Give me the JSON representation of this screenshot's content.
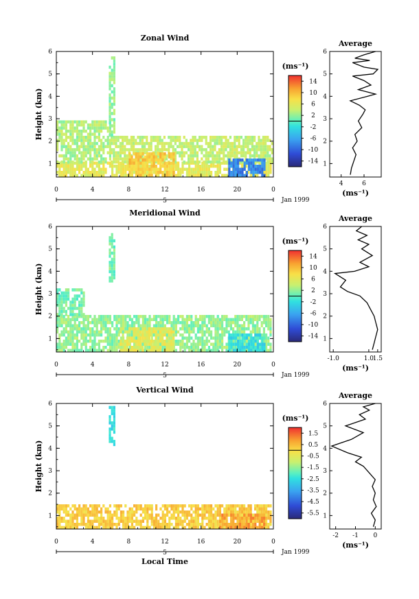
{
  "panels": [
    {
      "title": "Zonal Wind",
      "ylabel": "Height (km)",
      "yticks": [
        "1",
        "2",
        "3",
        "4",
        "5",
        "6"
      ],
      "xticks": [
        "0",
        "4",
        "8",
        "12",
        "16",
        "20",
        "0"
      ],
      "day_label": "5",
      "date_label": "Jan 1999",
      "unit_label": "(ms⁻¹)",
      "colorbar_ticks": [
        "14",
        "10",
        "6",
        "2",
        "-2",
        "-6",
        "-10",
        "-14"
      ],
      "avg_title": "Average",
      "avg_xticks": [
        "4",
        "6"
      ],
      "avg_unit": "(ms⁻¹)"
    },
    {
      "title": "Meridional Wind",
      "ylabel": "Height (km)",
      "yticks": [
        "1",
        "2",
        "3",
        "4",
        "5",
        "6"
      ],
      "xticks": [
        "0",
        "4",
        "8",
        "12",
        "16",
        "20",
        "0"
      ],
      "day_label": "5",
      "date_label": "Jan 1999",
      "unit_label": "(ms⁻¹)",
      "colorbar_ticks": [
        "14",
        "10",
        "6",
        "2",
        "-2",
        "-6",
        "-10",
        "-14"
      ],
      "avg_title": "Average",
      "avg_xticks": [
        "-1.0",
        "1.0",
        "1.5"
      ],
      "avg_unit": "(ms⁻¹)"
    },
    {
      "title": "Vertical Wind",
      "ylabel": "Height (km)",
      "yticks": [
        "1",
        "2",
        "3",
        "4",
        "5",
        "6"
      ],
      "xticks": [
        "0",
        "4",
        "8",
        "12",
        "16",
        "20",
        "0"
      ],
      "day_label": "5",
      "date_label": "Jan 1999",
      "unit_label": "(ms⁻¹)",
      "colorbar_ticks": [
        "1.5",
        "0.5",
        "-0.5",
        "-1.5",
        "-2.5",
        "-3.5",
        "-4.5",
        "-5.5"
      ],
      "avg_title": "Average",
      "avg_xticks": [
        "-2",
        "-1",
        "0"
      ],
      "avg_unit": "(ms⁻¹)"
    }
  ],
  "xlabel": "Local Time",
  "chart_data": [
    {
      "type": "heatmap",
      "title": "Zonal Wind",
      "ylabel": "Height (km)",
      "x_range": [
        0,
        24
      ],
      "ylim": [
        0.4,
        6
      ],
      "colorbar_range": [
        -16,
        16
      ],
      "colorbar_ticks": [
        14,
        10,
        6,
        2,
        -2,
        -6,
        -10,
        -14
      ],
      "regions": [
        {
          "x": [
            0,
            24
          ],
          "y": [
            0.4,
            1.0
          ],
          "value": 6
        },
        {
          "x": [
            0,
            6
          ],
          "y": [
            1.0,
            2.8
          ],
          "value": 3
        },
        {
          "x": [
            6,
            24
          ],
          "y": [
            1.0,
            2.2
          ],
          "value": 4
        },
        {
          "x": [
            8,
            13
          ],
          "y": [
            0.4,
            1.5
          ],
          "value": 9
        },
        {
          "x": [
            19,
            23
          ],
          "y": [
            0.4,
            1.2
          ],
          "value": -8
        },
        {
          "x": [
            5.8,
            6.3
          ],
          "y": [
            2.2,
            5.7
          ],
          "value": 2
        }
      ]
    },
    {
      "type": "line",
      "title": "Average",
      "x": [
        4.8,
        4.9,
        5.1,
        5.3,
        5.0,
        5.4,
        5.2,
        5.8,
        5.5,
        5.9,
        6.1,
        5.6,
        4.8,
        6.3,
        7.0,
        5.5,
        6.6,
        6.0,
        5.0,
        6.8,
        7.2,
        6.0,
        5.0,
        6.5,
        5.2,
        6.0,
        7.0
      ],
      "y": [
        0.5,
        0.8,
        1.1,
        1.4,
        1.7,
        2.0,
        2.3,
        2.6,
        2.9,
        3.2,
        3.4,
        3.6,
        3.8,
        4.0,
        4.1,
        4.3,
        4.5,
        4.7,
        4.9,
        5.0,
        5.2,
        5.3,
        5.5,
        5.6,
        5.7,
        5.85,
        6.0
      ],
      "xlabel": "(ms⁻¹)",
      "xlim": [
        3,
        7.5
      ],
      "ylim": [
        0.4,
        6
      ],
      "xticks": [
        4,
        6
      ]
    },
    {
      "type": "heatmap",
      "title": "Meridional Wind",
      "ylabel": "Height (km)",
      "x_range": [
        0,
        24
      ],
      "ylim": [
        0.4,
        6
      ],
      "colorbar_range": [
        -16,
        16
      ],
      "colorbar_ticks": [
        14,
        10,
        6,
        2,
        -2,
        -6,
        -10,
        -14
      ],
      "regions": [
        {
          "x": [
            0,
            24
          ],
          "y": [
            0.4,
            2.0
          ],
          "value": 2
        },
        {
          "x": [
            0,
            3
          ],
          "y": [
            2.0,
            3.2
          ],
          "value": 1
        },
        {
          "x": [
            7,
            13
          ],
          "y": [
            0.4,
            1.4
          ],
          "value": 6
        },
        {
          "x": [
            19,
            23
          ],
          "y": [
            0.4,
            1.2
          ],
          "value": -2
        },
        {
          "x": [
            5.8,
            6.3
          ],
          "y": [
            3.5,
            5.7
          ],
          "value": 1
        }
      ]
    },
    {
      "type": "line",
      "title": "Average",
      "x": [
        1.2,
        1.3,
        1.4,
        1.5,
        1.4,
        1.3,
        1.1,
        0.9,
        0.5,
        -0.2,
        -0.6,
        -0.3,
        -0.9,
        0.2,
        1.0,
        0.5,
        1.2,
        0.6,
        1.0,
        0.4,
        0.9,
        0.3,
        0.6
      ],
      "y": [
        0.5,
        0.8,
        1.1,
        1.4,
        1.7,
        2.0,
        2.3,
        2.6,
        2.9,
        3.1,
        3.3,
        3.6,
        3.9,
        4.0,
        4.2,
        4.4,
        4.7,
        5.0,
        5.2,
        5.4,
        5.6,
        5.8,
        6.0
      ],
      "xlabel": "(ms⁻¹)",
      "xlim": [
        -1.2,
        1.7
      ],
      "ylim": [
        0.4,
        6
      ],
      "xticks": [
        -1.0,
        1.0,
        1.5
      ]
    },
    {
      "type": "heatmap",
      "title": "Vertical Wind",
      "ylabel": "Height (km)",
      "x_range": [
        0,
        24
      ],
      "ylim": [
        0.4,
        6
      ],
      "colorbar_range": [
        -6,
        2
      ],
      "colorbar_ticks": [
        1.5,
        0.5,
        -0.5,
        -1.5,
        -2.5,
        -3.5,
        -4.5,
        -5.5
      ],
      "regions": [
        {
          "x": [
            0,
            24
          ],
          "y": [
            0.4,
            1.5
          ],
          "value": 0.2
        },
        {
          "x": [
            18,
            23
          ],
          "y": [
            0.4,
            1.0
          ],
          "value": 0.8
        },
        {
          "x": [
            5.8,
            6.3
          ],
          "y": [
            4.1,
            5.8
          ],
          "value": -2.5
        }
      ]
    },
    {
      "type": "line",
      "title": "Average",
      "x": [
        -0.1,
        0.0,
        -0.2,
        0.05,
        -0.1,
        0.0,
        -0.15,
        0.0,
        -0.3,
        -0.6,
        -1.0,
        -0.7,
        -1.4,
        -2.2,
        -1.2,
        -0.6,
        -1.5,
        -0.5,
        -0.8,
        -0.3,
        -0.6,
        0.0
      ],
      "y": [
        0.5,
        0.8,
        1.1,
        1.4,
        1.7,
        2.0,
        2.3,
        2.6,
        2.9,
        3.2,
        3.4,
        3.6,
        3.8,
        4.1,
        4.4,
        4.7,
        5.0,
        5.3,
        5.5,
        5.7,
        5.85,
        6.0
      ],
      "xlabel": "(ms⁻¹)",
      "xlim": [
        -2.3,
        0.3
      ],
      "ylim": [
        0.4,
        6
      ],
      "xticks": [
        -2,
        -1,
        0
      ]
    }
  ]
}
